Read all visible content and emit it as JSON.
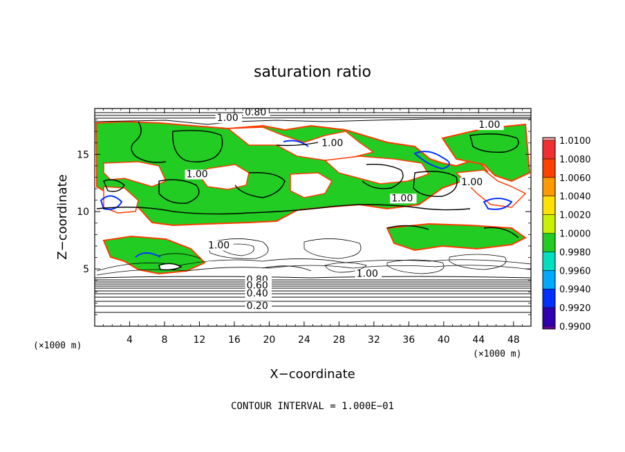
{
  "chart_data": {
    "type": "heatmap",
    "title": "saturation ratio",
    "xlabel": "X−coordinate",
    "ylabel": "Z−coordinate",
    "x_unit_left": "(×1000 m)",
    "x_unit_right": "(×1000 m)",
    "xlim": [
      0,
      50
    ],
    "ylim": [
      0,
      19
    ],
    "x_ticks": [
      4,
      8,
      12,
      16,
      20,
      24,
      28,
      32,
      36,
      40,
      44,
      48
    ],
    "y_ticks": [
      5,
      10,
      15
    ],
    "footer": "CONTOUR INTERVAL = 1.000E−01",
    "colorbar": {
      "levels": [
        "1.0100",
        "1.0080",
        "1.0060",
        "1.0040",
        "1.0020",
        "1.0000",
        "0.9980",
        "0.9960",
        "0.9940",
        "0.9920",
        "0.9900"
      ],
      "colors": [
        "#f2a0a0",
        "#f03030",
        "#ff4000",
        "#ff9900",
        "#ffe000",
        "#c8f000",
        "#22cc22",
        "#00e0c0",
        "#00a8ff",
        "#0030ff",
        "#3000b0",
        "#6a00a0"
      ]
    },
    "contour_labels": [
      {
        "text": "0.80",
        "x": 17.2,
        "y": 18.4
      },
      {
        "text": "1.00",
        "x": 14.0,
        "y": 17.9
      },
      {
        "text": "1.00",
        "x": 44.0,
        "y": 17.3
      },
      {
        "text": "1.00",
        "x": 26.0,
        "y": 15.7
      },
      {
        "text": "1.00",
        "x": 10.5,
        "y": 13.0
      },
      {
        "text": "1.00",
        "x": 42.0,
        "y": 12.3
      },
      {
        "text": "1.00",
        "x": 34.0,
        "y": 10.9
      },
      {
        "text": "1.00",
        "x": 13.0,
        "y": 6.8
      },
      {
        "text": "1.00",
        "x": 30.0,
        "y": 4.3
      },
      {
        "text": "0.80",
        "x": 17.4,
        "y": 3.8
      },
      {
        "text": "0.60",
        "x": 17.4,
        "y": 3.3
      },
      {
        "text": "0.40",
        "x": 17.4,
        "y": 2.6
      },
      {
        "text": "0.20",
        "x": 17.4,
        "y": 1.5
      }
    ]
  }
}
